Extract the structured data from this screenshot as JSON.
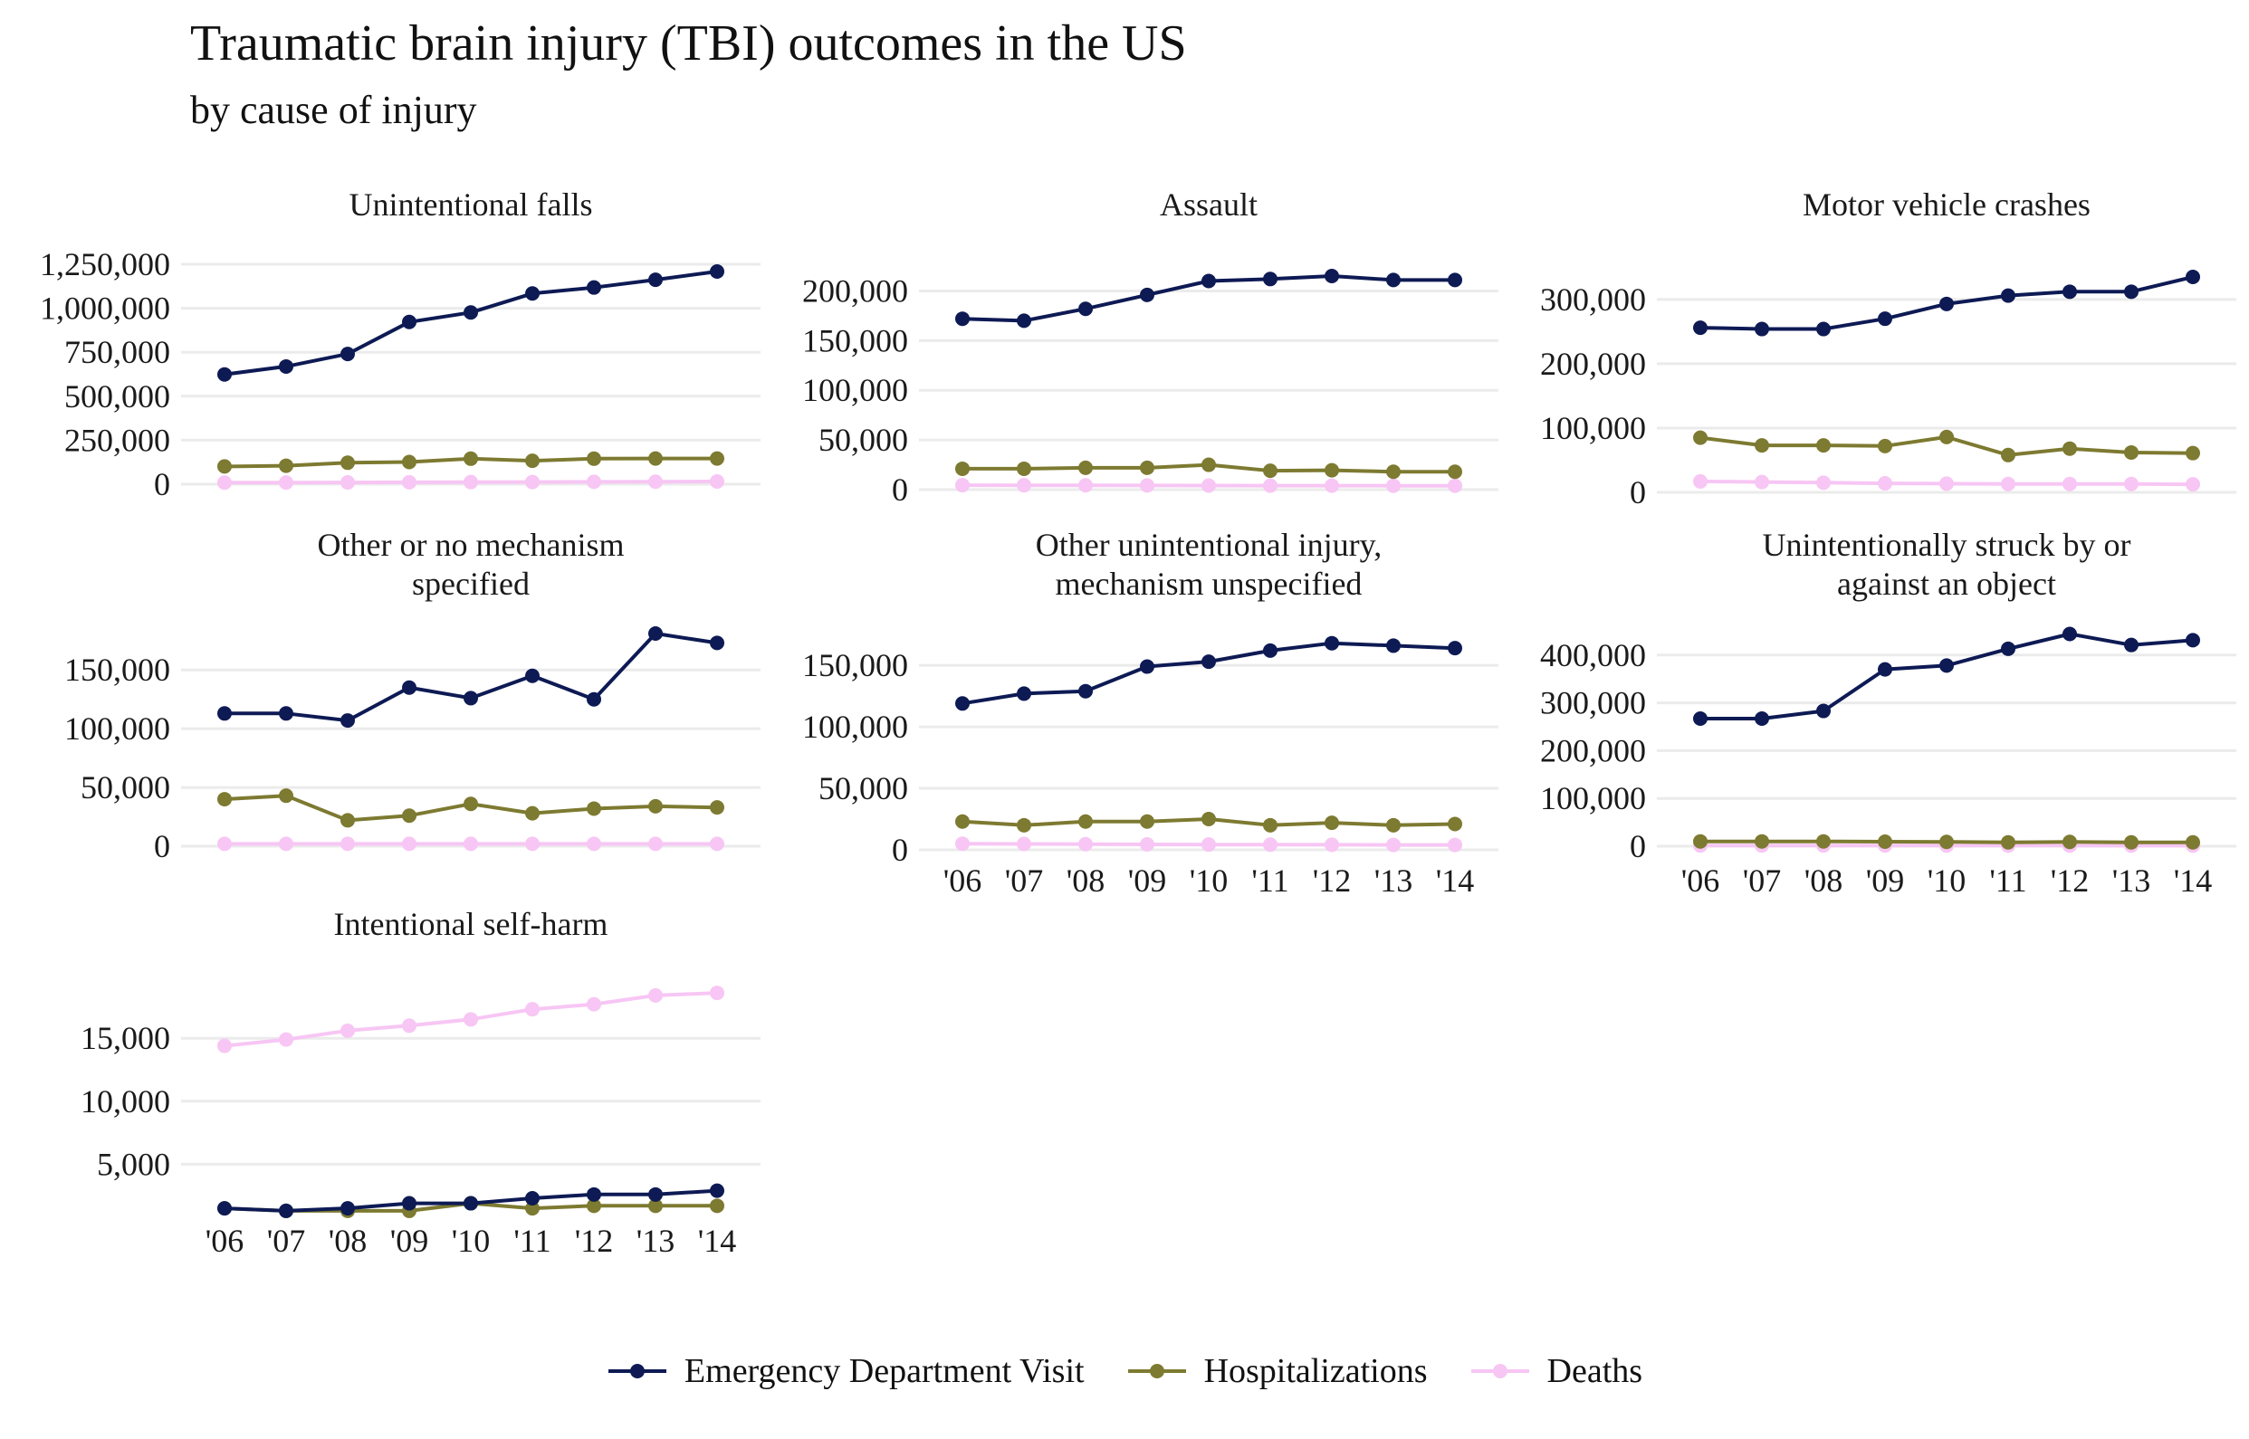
{
  "title": "Traumatic brain injury (TBI) outcomes in the US",
  "subtitle": "by cause of injury",
  "chart_data": {
    "type": "line",
    "title": "Traumatic brain injury (TBI) outcomes in the US",
    "subtitle": "by cause of injury",
    "xlabel": "",
    "ylabel": "",
    "x_tick_labels": [
      "'06",
      "'07",
      "'08",
      "'09",
      "'10",
      "'11",
      "'12",
      "'13",
      "'14"
    ],
    "grid": true,
    "legend_position": "bottom",
    "legend": [
      "Emergency Department Visit",
      "Hospitalizations",
      "Deaths"
    ],
    "colors": {
      "Emergency Department Visit": "#0d1a54",
      "Hospitalizations": "#7d7a31",
      "Deaths": "#f7c6f4"
    },
    "panels": [
      {
        "title_lines": [
          "Unintentional falls"
        ],
        "ylim": [
          0,
          1250000
        ],
        "yticks": [
          0,
          250000,
          500000,
          750000,
          1000000,
          1250000
        ],
        "ytick_labels": [
          "0",
          "250,000",
          "500,000",
          "750,000",
          "1,000,000",
          "1,250,000"
        ],
        "series": [
          {
            "name": "Emergency Department Visit",
            "values": [
              624000,
              669000,
              740000,
              922000,
              976000,
              1084000,
              1118000,
              1162000,
              1209000
            ]
          },
          {
            "name": "Hospitalizations",
            "values": [
              101000,
              105000,
              122000,
              126000,
              145000,
              133000,
              145000,
              146000,
              146000
            ]
          },
          {
            "name": "Deaths",
            "values": [
              9000,
              9500,
              10000,
              11000,
              12000,
              12500,
              13500,
              14000,
              15500
            ]
          }
        ]
      },
      {
        "title_lines": [
          "Assault"
        ],
        "ylim": [
          0,
          215000
        ],
        "yticks": [
          0,
          50000,
          100000,
          150000,
          200000
        ],
        "ytick_labels": [
          "0",
          "50,000",
          "100,000",
          "150,000",
          "200,000"
        ],
        "series": [
          {
            "name": "Emergency Department Visit",
            "values": [
              172000,
              170000,
              182000,
              196000,
              210000,
              212000,
              215000,
              211000,
              211000
            ]
          },
          {
            "name": "Hospitalizations",
            "values": [
              21000,
              21000,
              22000,
              22000,
              25000,
              19000,
              19500,
              18000,
              18000
            ]
          },
          {
            "name": "Deaths",
            "values": [
              4500,
              4400,
              4300,
              4200,
              4100,
              4000,
              4000,
              3900,
              3900
            ]
          }
        ]
      },
      {
        "title_lines": [
          "Motor vehicle crashes"
        ],
        "ylim": [
          0,
          335000
        ],
        "yticks": [
          0,
          100000,
          200000,
          300000
        ],
        "ytick_labels": [
          "0",
          "100,000",
          "200,000",
          "300,000"
        ],
        "series": [
          {
            "name": "Emergency Department Visit",
            "values": [
              256000,
              254000,
              254000,
              270000,
              293000,
              306000,
              312000,
              312000,
              335000
            ]
          },
          {
            "name": "Hospitalizations",
            "values": [
              85000,
              73000,
              73000,
              72000,
              86000,
              58000,
              68000,
              62000,
              61000
            ]
          },
          {
            "name": "Deaths",
            "values": [
              17000,
              16000,
              15000,
              14000,
              13500,
              13000,
              13000,
              13000,
              12500
            ]
          }
        ]
      },
      {
        "title_lines": [
          "Other or no mechanism",
          "specified"
        ],
        "ylim": [
          0,
          181000
        ],
        "yticks": [
          0,
          50000,
          100000,
          150000
        ],
        "ytick_labels": [
          "0",
          "50,000",
          "100,000",
          "150,000"
        ],
        "series": [
          {
            "name": "Emergency Department Visit",
            "values": [
              113000,
              113000,
              107000,
              135000,
              126000,
              145000,
              125000,
              181000,
              173000
            ]
          },
          {
            "name": "Hospitalizations",
            "values": [
              40000,
              43000,
              22000,
              26000,
              36000,
              28000,
              32000,
              34000,
              33000
            ]
          },
          {
            "name": "Deaths",
            "values": [
              2000,
              2000,
              2000,
              2000,
              2000,
              2000,
              2000,
              2000,
              2000
            ]
          }
        ]
      },
      {
        "title_lines": [
          "Other unintentional injury,",
          "mechanism unspecified"
        ],
        "ylim": [
          0,
          170000
        ],
        "yticks": [
          0,
          50000,
          100000,
          150000
        ],
        "ytick_labels": [
          "0",
          "50,000",
          "100,000",
          "150,000"
        ],
        "series": [
          {
            "name": "Emergency Department Visit",
            "values": [
              119000,
              127000,
              129000,
              149000,
              153000,
              162000,
              168000,
              166000,
              164000
            ]
          },
          {
            "name": "Hospitalizations",
            "values": [
              23000,
              20000,
              23000,
              23000,
              25000,
              20000,
              22000,
              20000,
              21000
            ]
          },
          {
            "name": "Deaths",
            "values": [
              5000,
              4800,
              4600,
              4400,
              4300,
              4200,
              4100,
              4000,
              4000
            ]
          }
        ]
      },
      {
        "title_lines": [
          "Unintentionally struck by or",
          "against an object"
        ],
        "ylim": [
          0,
          445000
        ],
        "yticks": [
          0,
          100000,
          200000,
          300000,
          400000
        ],
        "ytick_labels": [
          "0",
          "100,000",
          "200,000",
          "300,000",
          "400,000"
        ],
        "series": [
          {
            "name": "Emergency Department Visit",
            "values": [
              267000,
              267000,
              283000,
              370000,
              378000,
              413000,
              444000,
              421000,
              431000
            ]
          },
          {
            "name": "Hospitalizations",
            "values": [
              10000,
              10000,
              10000,
              9500,
              9000,
              8000,
              9000,
              8000,
              8000
            ]
          },
          {
            "name": "Deaths",
            "values": [
              1500,
              1500,
              1400,
              1400,
              1300,
              1300,
              1300,
              1200,
              1200
            ]
          }
        ]
      },
      {
        "title_lines": [
          "Intentional self-harm"
        ],
        "ylim": [
          1150,
          18750
        ],
        "yticks": [
          5000,
          10000,
          15000
        ],
        "ytick_labels": [
          "5,000",
          "10,000",
          "15,000"
        ],
        "series": [
          {
            "name": "Emergency Department Visit",
            "values": [
              1500,
              1300,
              1500,
              1900,
              1900,
              2300,
              2600,
              2600,
              2900
            ]
          },
          {
            "name": "Hospitalizations",
            "values": [
              1500,
              1300,
              1300,
              1300,
              1900,
              1500,
              1700,
              1700,
              1700
            ]
          },
          {
            "name": "Deaths",
            "values": [
              14400,
              14900,
              15600,
              16000,
              16500,
              17300,
              17700,
              18400,
              18600
            ]
          }
        ]
      }
    ]
  }
}
